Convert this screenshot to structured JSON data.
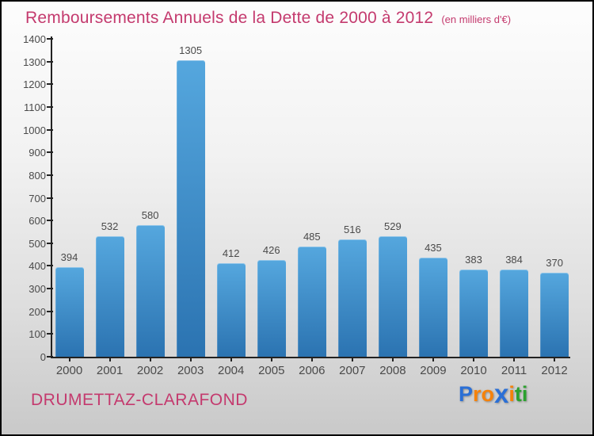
{
  "header": {
    "title": "Remboursements Annuels de la Dette de 2000 à 2012",
    "subtitle": "(en milliers d'€)"
  },
  "chart_data": {
    "type": "bar",
    "title": "Remboursements Annuels de la Dette de 2000 à 2012",
    "units_note": "en milliers d'€",
    "categories": [
      "2000",
      "2001",
      "2002",
      "2003",
      "2004",
      "2005",
      "2006",
      "2007",
      "2008",
      "2009",
      "2010",
      "2011",
      "2012"
    ],
    "values": [
      394,
      532,
      580,
      1305,
      412,
      426,
      485,
      516,
      529,
      435,
      383,
      384,
      370
    ],
    "xlabel": "",
    "ylabel": "",
    "ylim": [
      0,
      1400
    ],
    "y_tick_step": 100,
    "grid": false,
    "legend": "none",
    "bar_color_top": "#55a7de",
    "bar_color_bottom": "#2b73b1"
  },
  "footer": {
    "commune": "DRUMETTAZ-CLARAFOND",
    "logo": {
      "name": "Proxiti",
      "letters": [
        {
          "ch": "P",
          "color": "#2a6fd6",
          "x": false
        },
        {
          "ch": "r",
          "color": "#f5820b",
          "x": false
        },
        {
          "ch": "o",
          "color": "#f5820b",
          "x": false
        },
        {
          "ch": "x",
          "color": "#2a6fd6",
          "x": true
        },
        {
          "ch": "i",
          "color": "#f5820b",
          "x": false
        },
        {
          "ch": "t",
          "color": "#2ba12e",
          "x": false
        },
        {
          "ch": "i",
          "color": "#2ba12e",
          "x": false
        }
      ]
    }
  },
  "colors": {
    "accent_pink": "#c43a6e",
    "axis": "#222222",
    "labels": "#4a4a4a",
    "border": "#000000"
  }
}
